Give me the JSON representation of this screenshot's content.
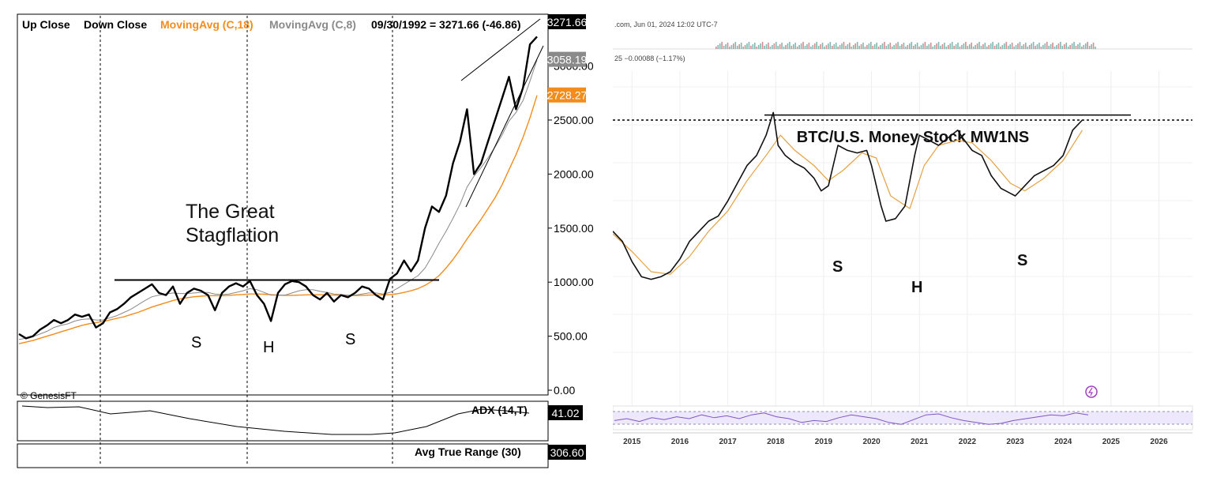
{
  "chart_data": [
    {
      "type": "line",
      "legend": {
        "items": [
          "Up Close",
          "Down Close",
          "MovingAvg (C,18)",
          "MovingAvg (C,8)"
        ],
        "readout": "09/30/1992 = 3271.66 (-46.86)",
        "colors": [
          "#000000",
          "#000000",
          "#f28c1c",
          "#8a8a8a"
        ]
      },
      "y_ticks": [
        "3000.00",
        "2500.00",
        "2000.00",
        "1500.00",
        "1000.00",
        "500.00",
        "0.00"
      ],
      "ylim": [
        0,
        3450
      ],
      "price_tags": [
        {
          "text": "3271.66",
          "value": 3271.66,
          "color": "#000000"
        },
        {
          "text": "3058.19",
          "value": 3058.19,
          "color": "#8a8a8a"
        },
        {
          "text": "2728.27",
          "value": 2728.27,
          "color": "#f28c1c"
        }
      ],
      "annotation": "The Great Stagflation",
      "annotation_lines": [
        "The Great",
        "Stagflation"
      ],
      "pattern_labels": [
        "S",
        "H",
        "S"
      ],
      "resistance_level": 1020,
      "series": [
        {
          "name": "Close",
          "color": "#000000",
          "values": [
            520,
            480,
            500,
            560,
            600,
            650,
            620,
            650,
            700,
            680,
            700,
            580,
            620,
            720,
            750,
            800,
            860,
            900,
            940,
            980,
            900,
            880,
            960,
            800,
            900,
            940,
            920,
            880,
            740,
            900,
            960,
            990,
            960,
            1010,
            880,
            800,
            640,
            900,
            980,
            1010,
            1000,
            960,
            880,
            840,
            900,
            820,
            880,
            860,
            900,
            960,
            940,
            880,
            840,
            1030,
            1080,
            1200,
            1100,
            1200,
            1500,
            1700,
            1650,
            1800,
            2100,
            2300,
            2600,
            2000,
            2100,
            2300,
            2500,
            2700,
            2900,
            2600,
            2800,
            3200,
            3271.66
          ]
        },
        {
          "name": "MovingAvg (C,8)",
          "color": "#8a8a8a",
          "values": [
            470,
            480,
            495,
            520,
            545,
            580,
            600,
            615,
            640,
            655,
            660,
            650,
            650,
            670,
            690,
            720,
            750,
            790,
            830,
            865,
            880,
            890,
            900,
            895,
            895,
            900,
            905,
            905,
            890,
            885,
            890,
            905,
            920,
            940,
            930,
            905,
            880,
            880,
            880,
            900,
            920,
            930,
            930,
            915,
            905,
            890,
            885,
            880,
            880,
            890,
            900,
            900,
            890,
            905,
            940,
            980,
            1020,
            1060,
            1130,
            1240,
            1360,
            1470,
            1590,
            1720,
            1880,
            1980,
            2060,
            2150,
            2250,
            2360,
            2490,
            2570,
            2680,
            2860,
            3058.19
          ]
        },
        {
          "name": "MovingAvg (C,18)",
          "color": "#f28c1c",
          "values": [
            430,
            445,
            460,
            480,
            500,
            520,
            540,
            560,
            580,
            600,
            615,
            625,
            635,
            650,
            665,
            680,
            700,
            720,
            745,
            770,
            790,
            810,
            830,
            845,
            855,
            865,
            870,
            875,
            875,
            875,
            878,
            882,
            886,
            890,
            890,
            888,
            884,
            880,
            878,
            878,
            880,
            882,
            884,
            884,
            882,
            880,
            878,
            876,
            876,
            878,
            880,
            882,
            882,
            885,
            892,
            905,
            920,
            940,
            970,
            1010,
            1060,
            1130,
            1210,
            1300,
            1400,
            1490,
            1580,
            1680,
            1780,
            1900,
            2040,
            2180,
            2340,
            2520,
            2728.27
          ]
        }
      ],
      "indicators": [
        {
          "name": "ADX (14,T)",
          "value": "41.02"
        },
        {
          "name": "Avg True Range (30)",
          "value": "306.60"
        }
      ],
      "watermark": "© GenesisFT"
    },
    {
      "type": "line",
      "header": ".com, Jun 01, 2024 12:02 UTC-7",
      "change": "25  −0.00088 (−1.17%)",
      "title": "BTC/U.S. Money Stock MW1NS",
      "x_ticks": [
        "2015",
        "2016",
        "2017",
        "2018",
        "2019",
        "2020",
        "2021",
        "2022",
        "2023",
        "2024",
        "2025",
        "2026"
      ],
      "xlim": [
        2014.6,
        2026.7
      ],
      "ylim": [
        0,
        1
      ],
      "pattern_labels": [
        "S",
        "H",
        "S"
      ],
      "resistance_level": 0.92,
      "dotted_level": 0.9,
      "series": [
        {
          "name": "BTC/MW1NS",
          "color": "#111111",
          "x": [
            2014.6,
            2014.8,
            2015.0,
            2015.2,
            2015.4,
            2015.6,
            2015.8,
            2016.0,
            2016.2,
            2016.4,
            2016.6,
            2016.8,
            2017.0,
            2017.2,
            2017.4,
            2017.6,
            2017.8,
            2017.95,
            2018.05,
            2018.2,
            2018.4,
            2018.6,
            2018.8,
            2018.95,
            2019.1,
            2019.3,
            2019.5,
            2019.7,
            2019.9,
            2020.0,
            2020.2,
            2020.3,
            2020.5,
            2020.7,
            2020.9,
            2021.0,
            2021.2,
            2021.4,
            2021.6,
            2021.8,
            2021.9,
            2022.1,
            2022.3,
            2022.5,
            2022.7,
            2022.9,
            2023.0,
            2023.2,
            2023.4,
            2023.6,
            2023.8,
            2024.0,
            2024.2,
            2024.4
          ],
          "y": [
            0.46,
            0.42,
            0.34,
            0.28,
            0.27,
            0.28,
            0.3,
            0.35,
            0.42,
            0.46,
            0.5,
            0.52,
            0.58,
            0.65,
            0.72,
            0.76,
            0.84,
            0.93,
            0.8,
            0.76,
            0.73,
            0.71,
            0.67,
            0.62,
            0.64,
            0.8,
            0.78,
            0.77,
            0.78,
            0.72,
            0.56,
            0.5,
            0.51,
            0.56,
            0.76,
            0.84,
            0.82,
            0.8,
            0.83,
            0.86,
            0.83,
            0.78,
            0.76,
            0.68,
            0.63,
            0.61,
            0.6,
            0.64,
            0.68,
            0.7,
            0.72,
            0.76,
            0.86,
            0.9
          ]
        },
        {
          "name": "Moving average",
          "color": "#e5a142",
          "x": [
            2014.6,
            2015.0,
            2015.4,
            2015.8,
            2016.2,
            2016.6,
            2017.0,
            2017.4,
            2017.8,
            2018.1,
            2018.4,
            2018.8,
            2019.1,
            2019.4,
            2019.8,
            2020.1,
            2020.4,
            2020.8,
            2021.1,
            2021.4,
            2021.8,
            2022.1,
            2022.5,
            2022.9,
            2023.2,
            2023.6,
            2024.0,
            2024.4
          ],
          "y": [
            0.45,
            0.38,
            0.3,
            0.29,
            0.36,
            0.46,
            0.54,
            0.66,
            0.76,
            0.84,
            0.78,
            0.72,
            0.66,
            0.7,
            0.77,
            0.75,
            0.6,
            0.55,
            0.72,
            0.8,
            0.82,
            0.81,
            0.74,
            0.65,
            0.62,
            0.67,
            0.74,
            0.86
          ]
        }
      ],
      "oscillator_values": [
        0.4,
        0.5,
        0.35,
        0.55,
        0.45,
        0.6,
        0.5,
        0.7,
        0.55,
        0.65,
        0.5,
        0.7,
        0.8,
        0.6,
        0.5,
        0.3,
        0.4,
        0.35,
        0.55,
        0.7,
        0.6,
        0.5,
        0.3,
        0.2,
        0.45,
        0.7,
        0.75,
        0.55,
        0.4,
        0.3,
        0.2,
        0.25,
        0.4,
        0.5,
        0.6,
        0.7,
        0.65,
        0.8,
        0.7
      ]
    }
  ]
}
